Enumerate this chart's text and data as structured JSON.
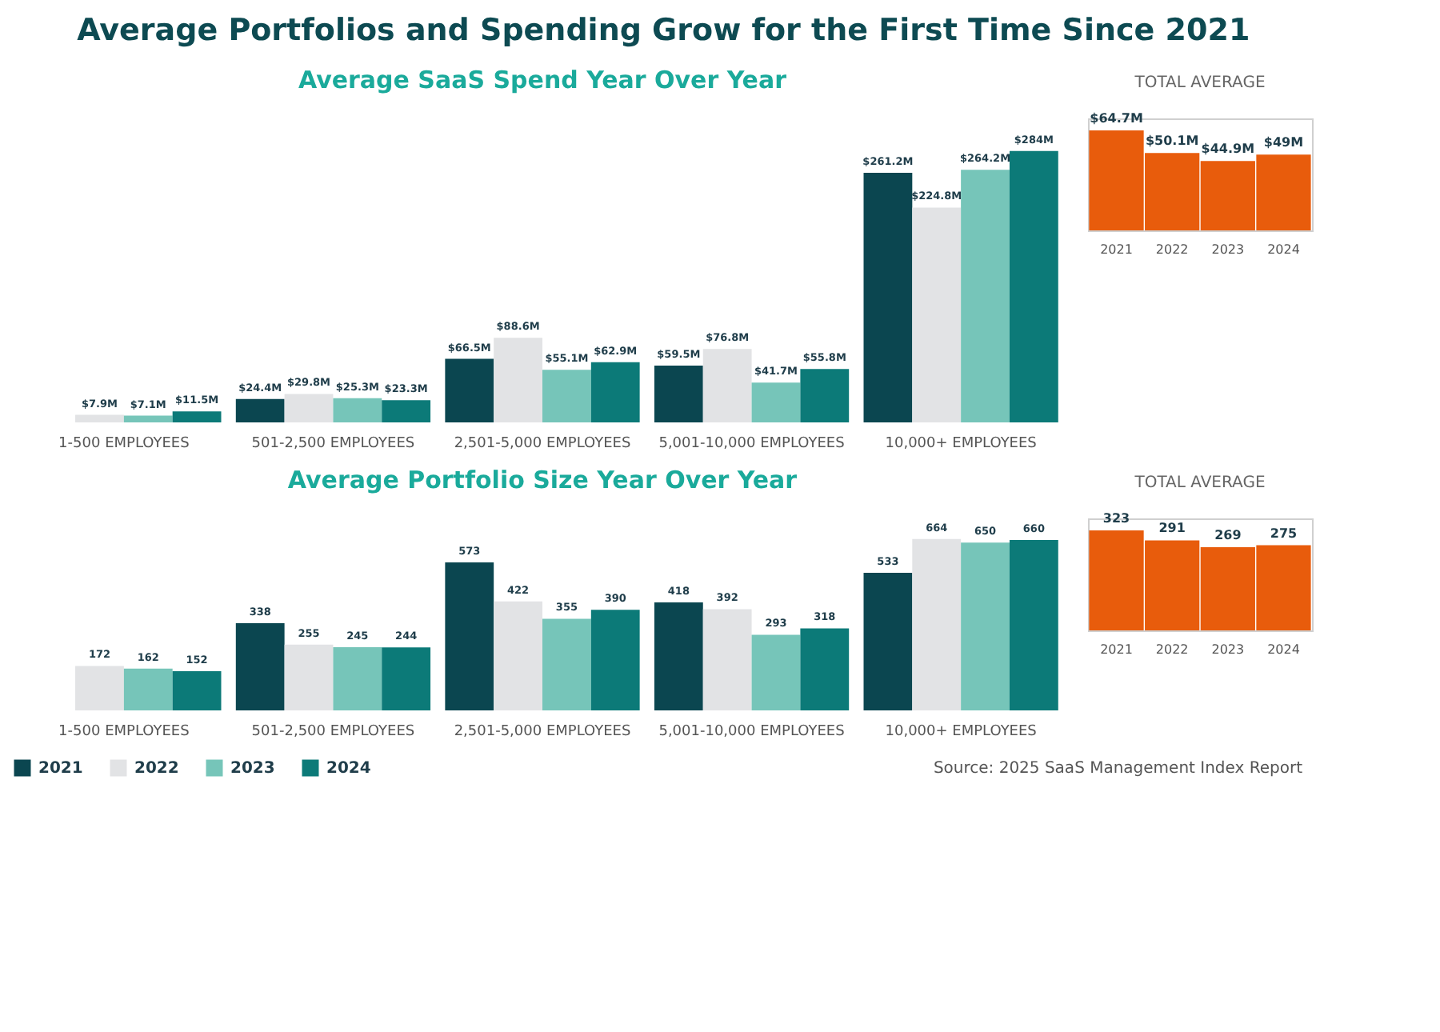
{
  "chart_data": [
    {
      "type": "bar",
      "title": "Average Portfolios and Spending Grow for the First Time Since 2021",
      "subtitle": "Average SaaS Spend Year Over Year",
      "categories": [
        "1-500 EMPLOYEES",
        "501-2,500 EMPLOYEES",
        "2,501-5,000 EMPLOYEES",
        "5,001-10,000 EMPLOYEES",
        "10,000+ EMPLOYEES"
      ],
      "data_labels": true,
      "legend": "bottom left",
      "series": [
        {
          "name": "2021",
          "color": "#0b4650",
          "values": [
            null,
            24.4,
            66.5,
            59.5,
            261.2
          ],
          "value_labels": [
            null,
            "$24.4M",
            "$66.5M",
            "$59.5M",
            "$261.2M"
          ]
        },
        {
          "name": "2022",
          "color": "#e2e3e5",
          "values": [
            7.9,
            29.8,
            88.6,
            76.8,
            224.8
          ],
          "value_labels": [
            "$7.9M",
            "$29.8M",
            "$88.6M",
            "$76.8M",
            "$224.8M"
          ]
        },
        {
          "name": "2023",
          "color": "#76c5b9",
          "values": [
            7.1,
            25.3,
            55.1,
            41.7,
            264.2
          ],
          "value_labels": [
            "$7.1M",
            "$25.3M",
            "$55.1M",
            "$41.7M",
            "$264.2M"
          ]
        },
        {
          "name": "2024",
          "color": "#0c7a78",
          "values": [
            11.5,
            23.3,
            62.9,
            55.8,
            284
          ],
          "value_labels": [
            "$11.5M",
            "$23.3M",
            "$62.9M",
            "$55.8M",
            "$284M"
          ]
        }
      ]
    },
    {
      "type": "bar",
      "title": "TOTAL AVERAGE",
      "categories": [
        "2021",
        "2022",
        "2023",
        "2024"
      ],
      "data_labels": true,
      "series": [
        {
          "color": "#e85c0c",
          "values": [
            64.7,
            50.1,
            44.9,
            49
          ],
          "value_labels": [
            "$64.7M",
            "$50.1M",
            "$44.9M",
            "$49M"
          ]
        }
      ]
    },
    {
      "type": "bar",
      "title": "Average Portfolio Size Year Over Year",
      "categories": [
        "1-500 EMPLOYEES",
        "501-2,500 EMPLOYEES",
        "2,501-5,000 EMPLOYEES",
        "5,001-10,000 EMPLOYEES",
        "10,000+ EMPLOYEES"
      ],
      "data_labels": true,
      "annotations": [
        "Source: 2025 SaaS Management Index Report"
      ],
      "series": [
        {
          "color": "#0b4650",
          "values": [
            null,
            338,
            573,
            418,
            533
          ]
        },
        {
          "color": "#e2e3e5",
          "values": [
            172,
            255,
            422,
            392,
            664
          ]
        },
        {
          "color": "#76c5b9",
          "values": [
            162,
            245,
            355,
            293,
            650
          ]
        },
        {
          "color": "#0c7a78",
          "values": [
            152,
            244,
            390,
            318,
            660
          ]
        }
      ]
    },
    {
      "type": "bar",
      "title": "TOTAL AVERAGE",
      "categories": [
        "2021",
        "2022",
        "2023",
        "2024"
      ],
      "data_labels": true,
      "series": [
        {
          "color": "#e85c0c",
          "values": [
            323,
            291,
            269,
            275
          ]
        }
      ]
    }
  ]
}
